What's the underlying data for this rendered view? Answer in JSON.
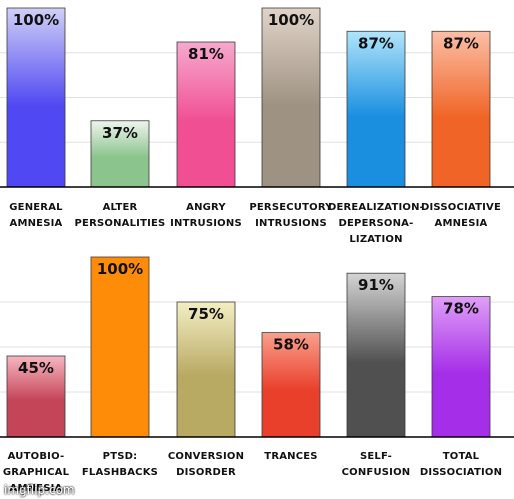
{
  "chart_data": [
    {
      "type": "bar",
      "title": "",
      "xlabel": "",
      "ylabel": "",
      "ylim": [
        0,
        100
      ],
      "grid": true,
      "categories": [
        [
          "GENERAL",
          "AMNESIA"
        ],
        [
          "ALTER",
          "PERSONALITIES"
        ],
        [
          "ANGRY",
          "INTRUSIONS"
        ],
        [
          "PERSECUTORY",
          "INTRUSIONS"
        ],
        [
          "DEREALIZATION-",
          "DEPERSONA-",
          "LIZATION"
        ],
        [
          "DISSOCIATIVE",
          "AMNESIA"
        ]
      ],
      "values": [
        100,
        37,
        81,
        100,
        87,
        87
      ],
      "data_labels": [
        "100%",
        "37%",
        "81%",
        "100%",
        "87%",
        "87%"
      ],
      "bar_colors": [
        [
          "#d0d0f6",
          "#5048f2"
        ],
        [
          "#eef5ee",
          "#8cc48e"
        ],
        [
          "#f7a9ce",
          "#f04f94"
        ],
        [
          "#e0d3c8",
          "#9e9282"
        ],
        [
          "#b0e4fa",
          "#1a8fe0"
        ],
        [
          "#fbbfa6",
          "#f06527"
        ]
      ]
    },
    {
      "type": "bar",
      "title": "",
      "xlabel": "",
      "ylabel": "",
      "ylim": [
        0,
        100
      ],
      "grid": true,
      "categories": [
        [
          "AUTOBIO-",
          "GRAPHICAL",
          "AMNESIA"
        ],
        [
          "PTSD:",
          "FLASHBACKS"
        ],
        [
          "CONVERSION",
          "DISORDER"
        ],
        [
          "TRANCES"
        ],
        [
          "SELF-",
          "CONFUSION"
        ],
        [
          "TOTAL",
          "DISSOCIATION"
        ]
      ],
      "values": [
        45,
        100,
        75,
        58,
        91,
        78
      ],
      "data_labels": [
        "45%",
        "100%",
        "75%",
        "58%",
        "91%",
        "78%"
      ],
      "bar_colors": [
        [
          "#f6b7c0",
          "#c44458"
        ],
        [
          "#ff8c08",
          "#ff8c08"
        ],
        [
          "#f3eec4",
          "#b8a963"
        ],
        [
          "#f9a08c",
          "#e9402c"
        ],
        [
          "#d4d4d4",
          "#505050"
        ],
        [
          "#df9ff7",
          "#a52ee8"
        ]
      ]
    }
  ],
  "watermark": "imgflip.com"
}
